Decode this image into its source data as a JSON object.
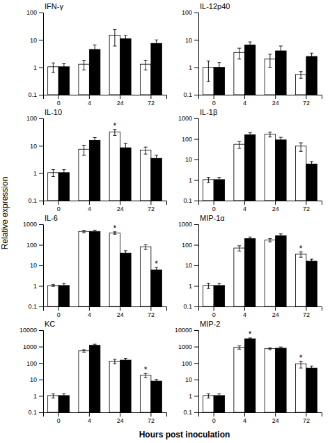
{
  "chart_data": [
    {
      "type": "bar",
      "title": "IFN-γ",
      "log": "y",
      "ylim": [
        0.1,
        100
      ],
      "yticks": [
        0.1,
        1,
        10,
        100
      ],
      "categories": [
        "0",
        "4",
        "24",
        "72"
      ],
      "series": [
        {
          "color": "white",
          "values": [
            1.05,
            1.3,
            15.0,
            1.3
          ],
          "errors": [
            0.4,
            0.5,
            9.0,
            0.5
          ]
        },
        {
          "color": "black",
          "values": [
            1.05,
            4.5,
            11.0,
            7.5
          ],
          "errors": [
            0.3,
            2.0,
            3.5,
            2.5
          ]
        }
      ]
    },
    {
      "type": "bar",
      "title": "IL-12p40",
      "log": "y",
      "ylim": [
        0.1,
        100
      ],
      "yticks": [
        0.1,
        1,
        10,
        100
      ],
      "categories": [
        "0",
        "4",
        "24",
        "72"
      ],
      "series": [
        {
          "color": "white",
          "values": [
            1.0,
            3.5,
            2.0,
            0.55
          ],
          "errors": [
            0.7,
            1.5,
            1.0,
            0.15
          ]
        },
        {
          "color": "black",
          "values": [
            1.0,
            6.5,
            4.0,
            2.5
          ],
          "errors": [
            0.5,
            2.0,
            2.0,
            0.8
          ]
        }
      ]
    },
    {
      "type": "bar",
      "title": "IL-10",
      "log": "y",
      "ylim": [
        0.1,
        100
      ],
      "yticks": [
        0.1,
        1,
        10,
        100
      ],
      "categories": [
        "0",
        "4",
        "24",
        "72"
      ],
      "series": [
        {
          "color": "white",
          "values": [
            1.05,
            7.5,
            32.0,
            7.0
          ],
          "errors": [
            0.3,
            3.0,
            8.0,
            2.0
          ],
          "annotations": [
            null,
            null,
            "*",
            null
          ]
        },
        {
          "color": "black",
          "values": [
            1.05,
            16.0,
            8.5,
            3.5
          ],
          "errors": [
            0.3,
            4.0,
            4.0,
            1.0
          ]
        }
      ]
    },
    {
      "type": "bar",
      "title": "IL-1β",
      "log": "y",
      "ylim": [
        0.1,
        1000
      ],
      "yticks": [
        0.1,
        1,
        10,
        100,
        1000
      ],
      "categories": [
        "0",
        "4",
        "24",
        "72"
      ],
      "series": [
        {
          "color": "white",
          "values": [
            1.05,
            55.0,
            170.0,
            45.0
          ],
          "errors": [
            0.3,
            20.0,
            45.0,
            20.0
          ]
        },
        {
          "color": "black",
          "values": [
            1.05,
            160.0,
            90.0,
            6.0
          ],
          "errors": [
            0.3,
            40.0,
            30.0,
            2.0
          ]
        }
      ]
    },
    {
      "type": "bar",
      "title": "IL-6",
      "log": "y",
      "ylim": [
        0.1,
        1000
      ],
      "yticks": [
        0.1,
        1,
        10,
        100,
        1000
      ],
      "categories": [
        "0",
        "4",
        "24",
        "72"
      ],
      "series": [
        {
          "color": "white",
          "values": [
            1.05,
            450.0,
            380.0,
            80.0
          ],
          "errors": [
            0.1,
            60.0,
            50.0,
            20.0
          ],
          "annotations": [
            null,
            null,
            "*",
            null
          ]
        },
        {
          "color": "black",
          "values": [
            1.05,
            450.0,
            40.0,
            6.0
          ],
          "errors": [
            0.3,
            70.0,
            12.0,
            2.0
          ],
          "annotations": [
            null,
            null,
            null,
            "*"
          ]
        }
      ]
    },
    {
      "type": "bar",
      "title": "MIP-1α",
      "log": "y",
      "ylim": [
        0.1,
        1000
      ],
      "yticks": [
        0.1,
        1,
        10,
        100,
        1000
      ],
      "categories": [
        "0",
        "4",
        "24",
        "72"
      ],
      "series": [
        {
          "color": "white",
          "values": [
            1.05,
            70.0,
            170.0,
            35.0
          ],
          "errors": [
            0.3,
            20.0,
            30.0,
            10.0
          ],
          "annotations": [
            null,
            null,
            null,
            "*"
          ]
        },
        {
          "color": "black",
          "values": [
            1.05,
            200.0,
            280.0,
            16.0
          ],
          "errors": [
            0.3,
            40.0,
            60.0,
            4.0
          ]
        }
      ]
    },
    {
      "type": "bar",
      "title": "KC",
      "log": "y",
      "ylim": [
        0.1,
        10000
      ],
      "yticks": [
        0.1,
        1,
        10,
        100,
        1000,
        10000
      ],
      "categories": [
        "0",
        "4",
        "24",
        "72"
      ],
      "series": [
        {
          "color": "white",
          "values": [
            1.05,
            550.0,
            130.0,
            18.0
          ],
          "errors": [
            0.3,
            100.0,
            40.0,
            5.0
          ],
          "annotations": [
            null,
            null,
            null,
            "*"
          ]
        },
        {
          "color": "black",
          "values": [
            1.05,
            1200.0,
            150.0,
            8.0
          ],
          "errors": [
            0.3,
            200.0,
            40.0,
            2.0
          ]
        }
      ]
    },
    {
      "type": "bar",
      "title": "MIP-2",
      "log": "y",
      "ylim": [
        0.1,
        10000
      ],
      "yticks": [
        0.1,
        1,
        10,
        100,
        1000,
        10000
      ],
      "categories": [
        "0",
        "4",
        "24",
        "72"
      ],
      "series": [
        {
          "color": "white",
          "values": [
            1.05,
            900.0,
            750.0,
            90.0
          ],
          "errors": [
            0.3,
            200.0,
            100.0,
            40.0
          ],
          "annotations": [
            null,
            null,
            null,
            "*"
          ]
        },
        {
          "color": "black",
          "values": [
            1.05,
            3000.0,
            800.0,
            50.0
          ],
          "errors": [
            0.3,
            400.0,
            150.0,
            15.0
          ],
          "annotations": [
            null,
            "*",
            null,
            null
          ]
        }
      ]
    }
  ],
  "ylabel": "Relative expression",
  "xlabel": "Hours post inoculation"
}
